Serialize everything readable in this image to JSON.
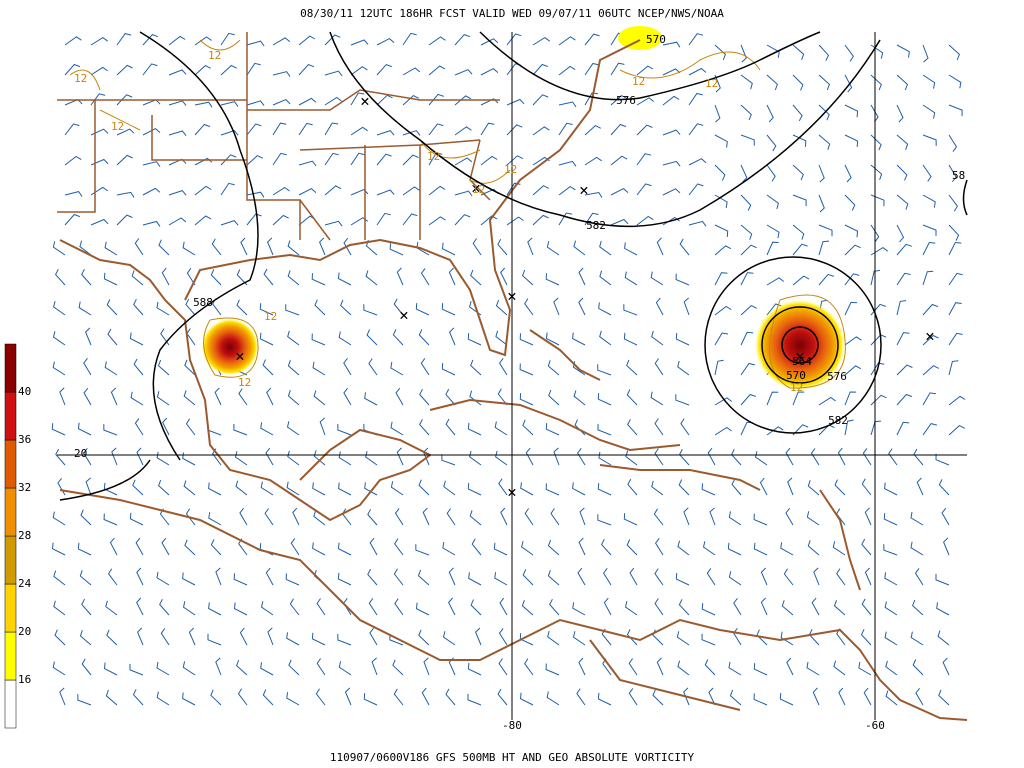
{
  "header": {
    "title": "08/30/11 12UTC  186HR  FCST VALID WED 09/07/11 06UTC  NCEP/NWS/NOAA"
  },
  "footer": {
    "caption": "110907/0600V186 GFS 500MB HT AND GEO ABSOLUTE VORTICITY"
  },
  "colorbar": {
    "labels": [
      16,
      20,
      24,
      28,
      32,
      36,
      40
    ]
  },
  "height_labels": [
    "570",
    "576",
    "582",
    "588",
    "564",
    "570",
    "576",
    "582",
    "58"
  ],
  "vorticity_labels": [
    "12",
    "12",
    "12",
    "12",
    "12",
    "12",
    "12",
    "12",
    "12",
    "12",
    "12"
  ],
  "grid_labels": {
    "lat": "20",
    "lon_1": "-80",
    "lon_2": "-60"
  }
}
